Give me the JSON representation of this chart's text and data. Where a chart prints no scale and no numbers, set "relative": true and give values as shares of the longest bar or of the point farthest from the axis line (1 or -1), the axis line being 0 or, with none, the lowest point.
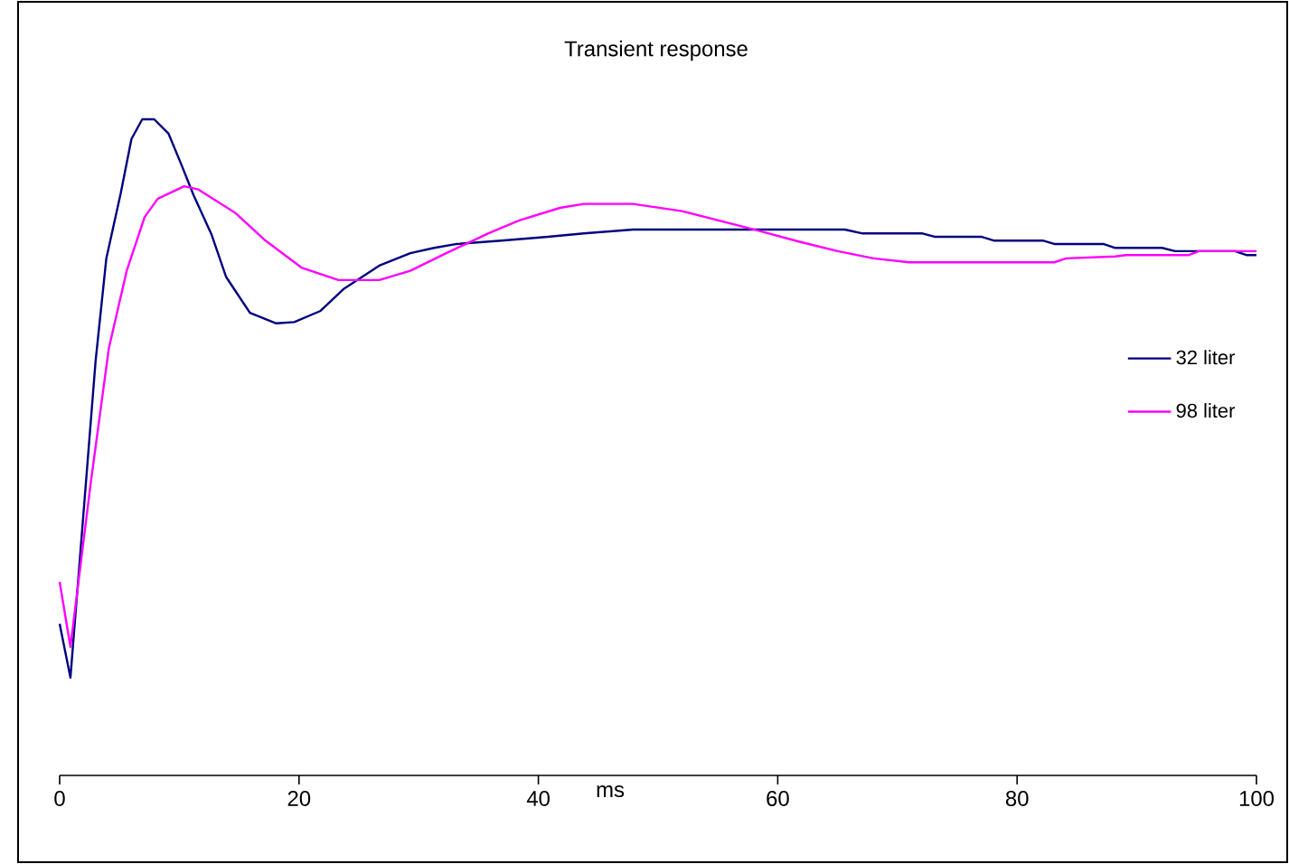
{
  "chart_data": {
    "type": "line",
    "title": "Transient response",
    "xlabel": "ms",
    "relative": true,
    "xlim": [
      0,
      100
    ],
    "xticks": [
      0,
      20,
      40,
      60,
      80,
      100
    ],
    "legend": "right",
    "marker": "none",
    "grid": false,
    "series": [
      {
        "name": "32 liter",
        "color": "#000080",
        "x": [
          0,
          0.9,
          3.0,
          3.9,
          5.1,
          6.0,
          6.9,
          7.9,
          9.1,
          10.1,
          11.2,
          12.7,
          13.9,
          15.9,
          18.1,
          19.6,
          21.8,
          23.7,
          26.7,
          29.3,
          31.3,
          33.2,
          36.9,
          40.8,
          43.8,
          47.9,
          65.6,
          67.1,
          72.1,
          73.1,
          77.0,
          78.1,
          82.2,
          83.1,
          87.2,
          88.2,
          92.1,
          93.2,
          98.2,
          99.2,
          100
        ],
        "values": [
          0.231,
          0.149,
          0.631,
          0.788,
          0.887,
          0.97,
          1.0,
          1.0,
          0.978,
          0.934,
          0.884,
          0.824,
          0.76,
          0.705,
          0.689,
          0.691,
          0.708,
          0.741,
          0.777,
          0.796,
          0.804,
          0.81,
          0.815,
          0.821,
          0.826,
          0.832,
          0.832,
          0.826,
          0.826,
          0.821,
          0.821,
          0.815,
          0.815,
          0.81,
          0.81,
          0.804,
          0.804,
          0.799,
          0.799,
          0.793,
          0.793
        ]
      },
      {
        "name": "98 liter",
        "color": "#ff00ff",
        "x": [
          0,
          0.9,
          2.6,
          4.1,
          5.6,
          7.1,
          8.2,
          10.4,
          11.6,
          14.7,
          17.2,
          20.2,
          23.3,
          26.7,
          29.3,
          32.3,
          35.8,
          38.4,
          41.8,
          43.8,
          47.9,
          52.0,
          55.0,
          58.0,
          61.9,
          65.0,
          68.0,
          71.0,
          83.1,
          84.1,
          88.2,
          89.1,
          94.3,
          95.2,
          100
        ],
        "values": [
          0.295,
          0.196,
          0.446,
          0.65,
          0.769,
          0.851,
          0.879,
          0.898,
          0.893,
          0.857,
          0.815,
          0.774,
          0.755,
          0.755,
          0.769,
          0.796,
          0.826,
          0.846,
          0.865,
          0.871,
          0.871,
          0.86,
          0.846,
          0.832,
          0.813,
          0.799,
          0.788,
          0.782,
          0.782,
          0.788,
          0.791,
          0.793,
          0.793,
          0.799,
          0.799
        ]
      }
    ]
  }
}
